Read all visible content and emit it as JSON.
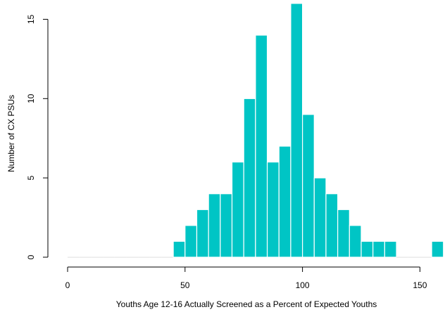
{
  "chart_data": {
    "type": "bar",
    "title": "",
    "xlabel": "Youths Age 12-16 Actually Screened as a Percent of Expected Youths",
    "ylabel": "Number of CX PSUs",
    "bin_width": 5,
    "bins": [
      {
        "x_start": 0,
        "value": 0
      },
      {
        "x_start": 5,
        "value": 0
      },
      {
        "x_start": 10,
        "value": 0
      },
      {
        "x_start": 15,
        "value": 0
      },
      {
        "x_start": 20,
        "value": 0
      },
      {
        "x_start": 25,
        "value": 0
      },
      {
        "x_start": 30,
        "value": 0
      },
      {
        "x_start": 35,
        "value": 0
      },
      {
        "x_start": 40,
        "value": 0
      },
      {
        "x_start": 45,
        "value": 1
      },
      {
        "x_start": 50,
        "value": 2
      },
      {
        "x_start": 55,
        "value": 3
      },
      {
        "x_start": 60,
        "value": 4
      },
      {
        "x_start": 65,
        "value": 4
      },
      {
        "x_start": 70,
        "value": 6
      },
      {
        "x_start": 75,
        "value": 10
      },
      {
        "x_start": 80,
        "value": 14
      },
      {
        "x_start": 85,
        "value": 6
      },
      {
        "x_start": 90,
        "value": 7
      },
      {
        "x_start": 95,
        "value": 16
      },
      {
        "x_start": 100,
        "value": 9
      },
      {
        "x_start": 105,
        "value": 5
      },
      {
        "x_start": 110,
        "value": 4
      },
      {
        "x_start": 115,
        "value": 3
      },
      {
        "x_start": 120,
        "value": 2
      },
      {
        "x_start": 125,
        "value": 1
      },
      {
        "x_start": 130,
        "value": 1
      },
      {
        "x_start": 135,
        "value": 1
      },
      {
        "x_start": 140,
        "value": 0
      },
      {
        "x_start": 145,
        "value": 0
      },
      {
        "x_start": 150,
        "value": 0
      },
      {
        "x_start": 155,
        "value": 1
      }
    ],
    "xlim": [
      0,
      160
    ],
    "ylim": [
      0,
      16
    ],
    "xticks": [
      0,
      50,
      100,
      150
    ],
    "yticks": [
      0,
      5,
      10,
      15
    ],
    "bar_color": "#00c5c5",
    "bar_edge_color": "#ffffff",
    "zero_bar_color": "#e3e3e3",
    "grid": false
  }
}
